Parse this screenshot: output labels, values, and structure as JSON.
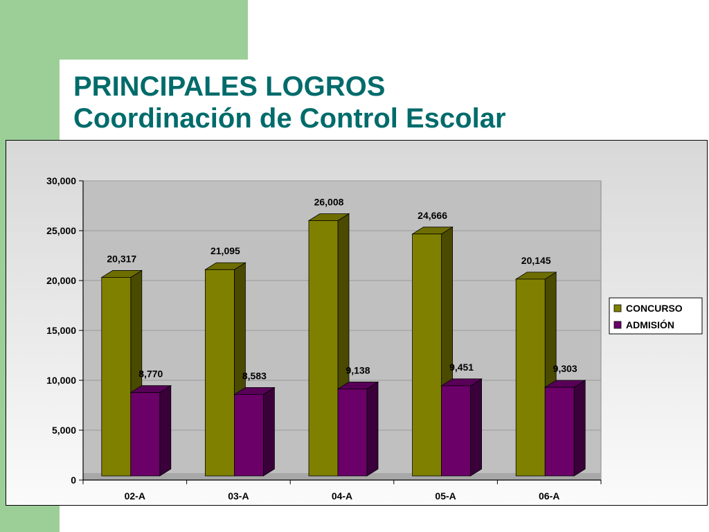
{
  "slide": {
    "title_line1": "PRINCIPALES LOGROS",
    "title_line2": "Coordinación de Control Escolar"
  },
  "chart_data": {
    "type": "bar",
    "style": "3d-clustered",
    "categories": [
      "02-A",
      "03-A",
      "04-A",
      "05-A",
      "06-A"
    ],
    "series": [
      {
        "name": "CONCURSO",
        "values": [
          20317,
          21095,
          26008,
          24666,
          20145
        ],
        "labels": [
          "20,317",
          "21,095",
          "26,008",
          "24,666",
          "20,145"
        ],
        "color": "#808000",
        "side_color": "#4a4a00",
        "top_color": "#6e6e00"
      },
      {
        "name": "ADMISIÓN",
        "values": [
          8770,
          8583,
          9138,
          9451,
          9303
        ],
        "labels": [
          "8,770",
          "8,583",
          "9,138",
          "9,451",
          "9,303"
        ],
        "color": "#6a0068",
        "side_color": "#3a003a",
        "top_color": "#580058"
      }
    ],
    "y_ticks": [
      "0",
      "5,000",
      "10,000",
      "15,000",
      "20,000",
      "25,000",
      "30,000"
    ],
    "ylim": [
      0,
      30000
    ],
    "legend_position": "right",
    "plot_background": "#c0c0c0"
  }
}
